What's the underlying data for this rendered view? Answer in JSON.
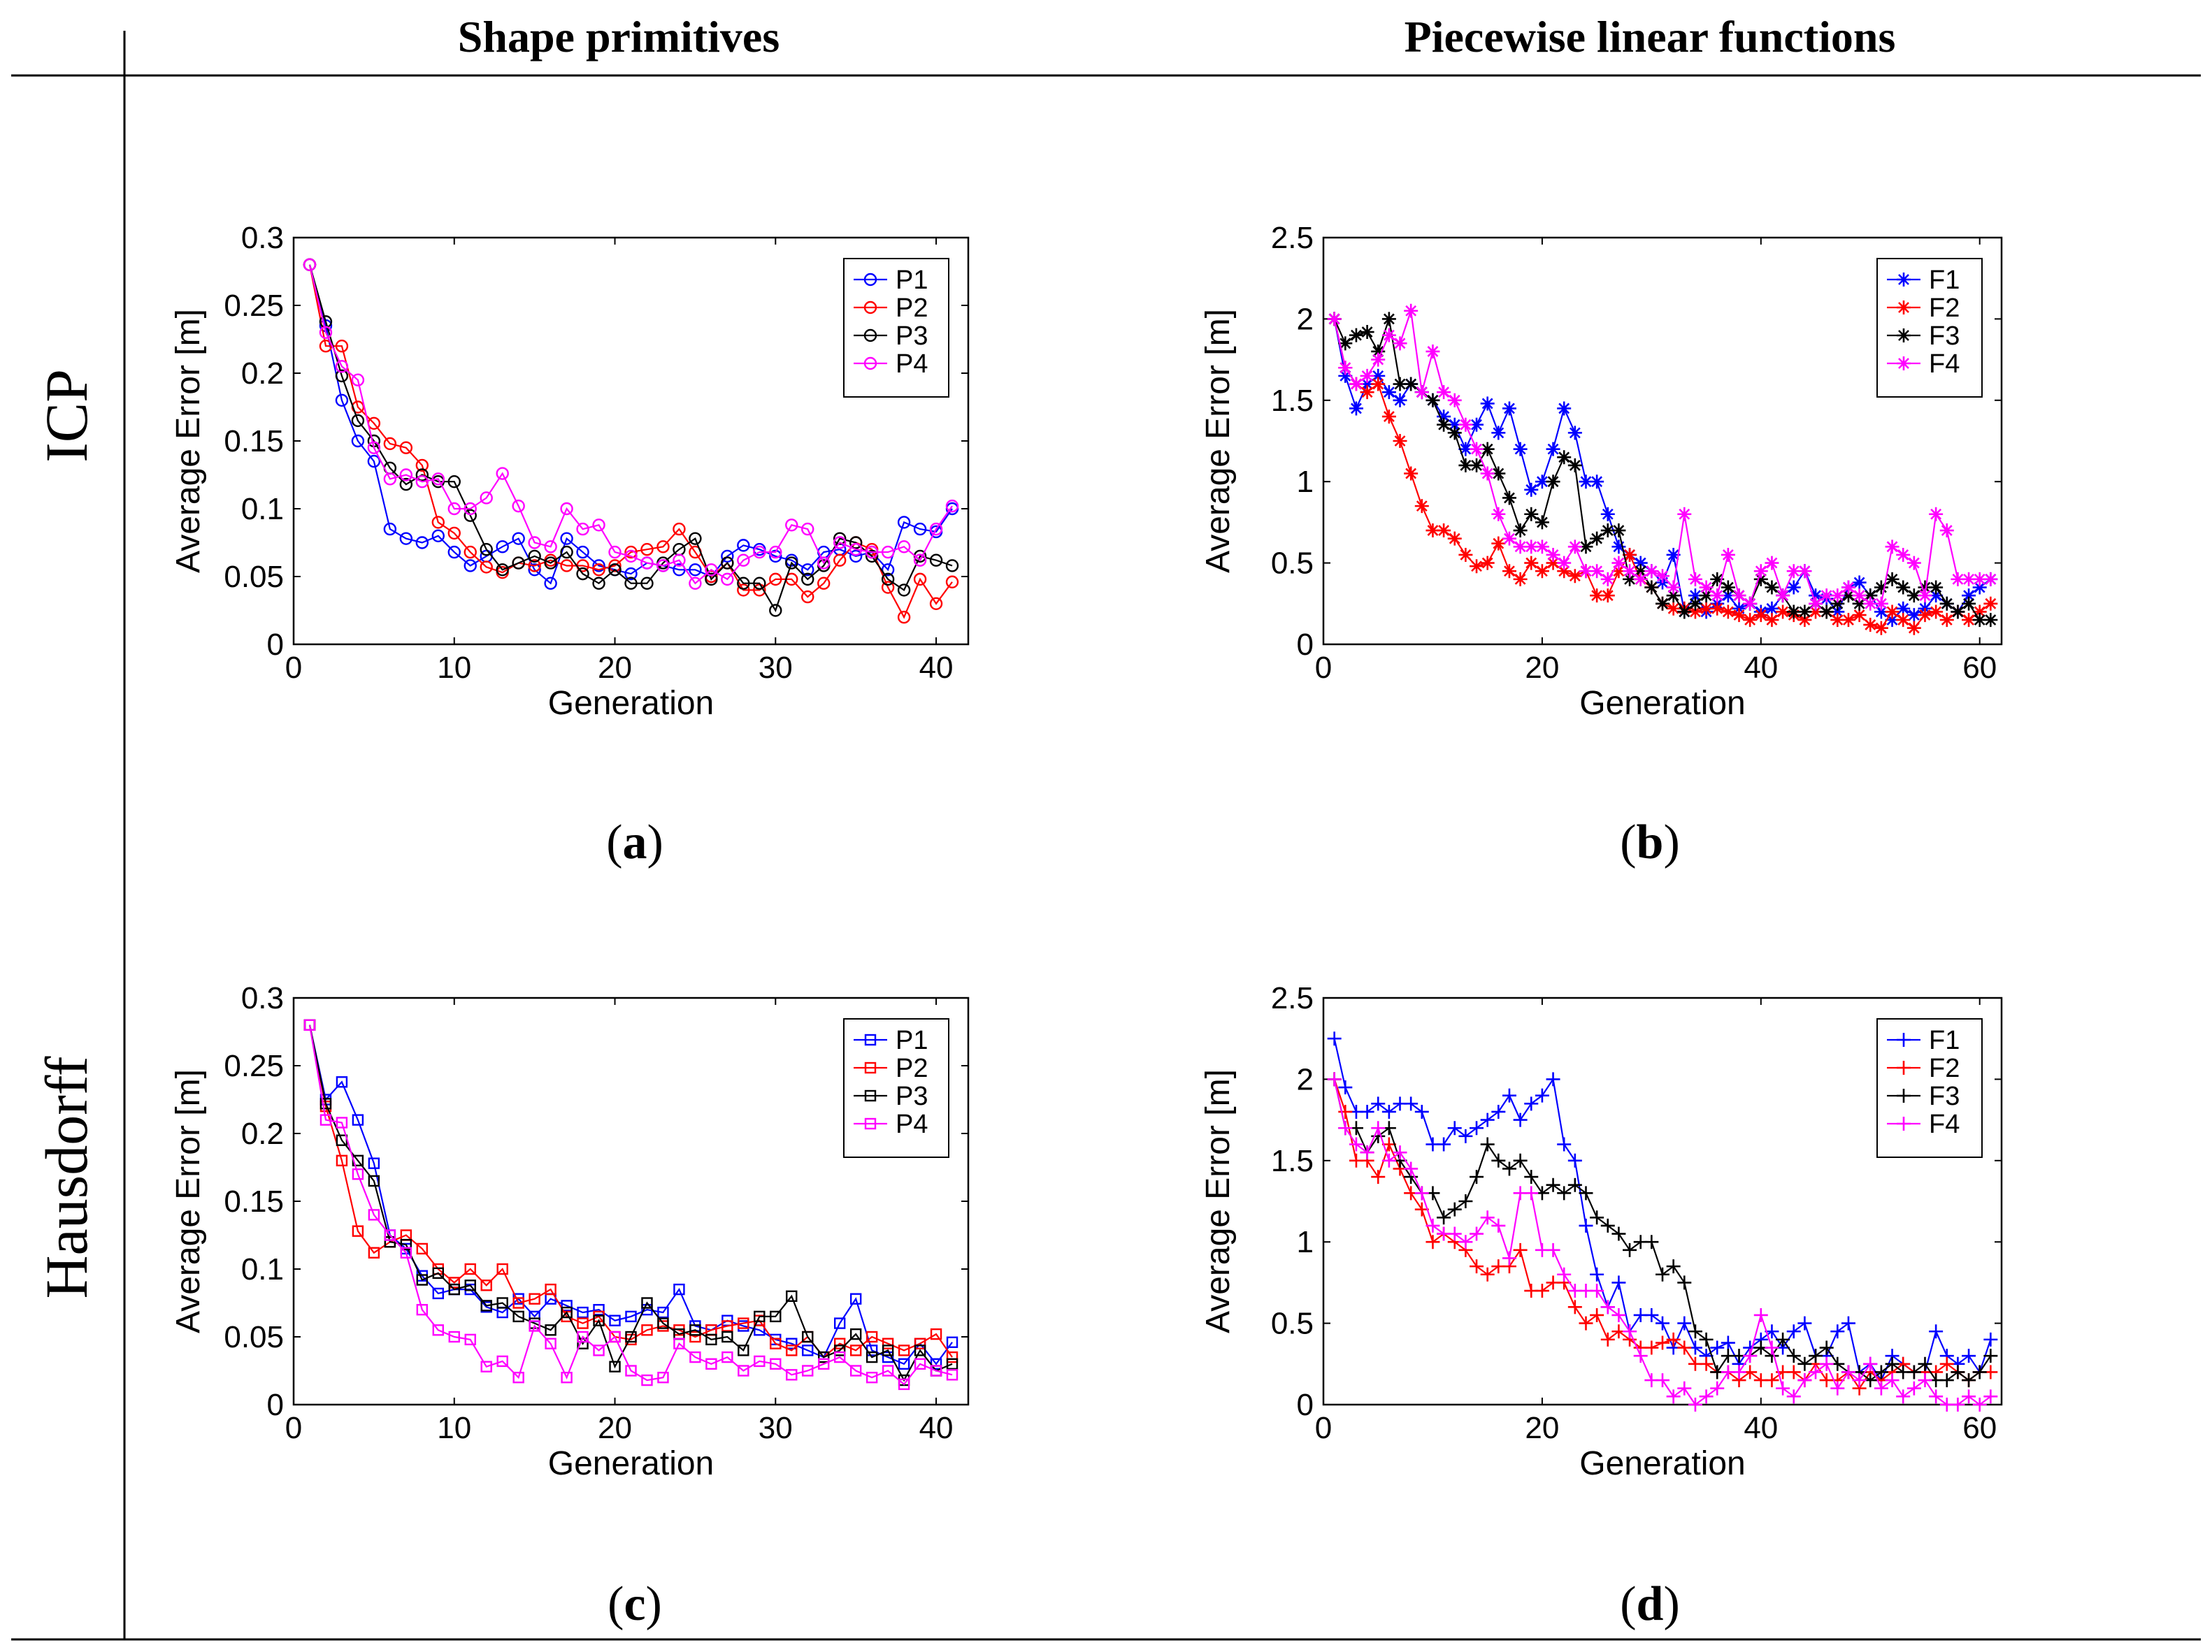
{
  "columns": {
    "left": "Shape primitives",
    "right": "Piecewise linear functions"
  },
  "rows": {
    "top": "ICP",
    "bottom": "Hausdorff"
  },
  "panel_labels": [
    {
      "letter": "a"
    },
    {
      "letter": "b"
    },
    {
      "letter": "c"
    },
    {
      "letter": "d"
    }
  ],
  "chart_data": [
    {
      "id": "a",
      "type": "line",
      "marker": "circle",
      "xlabel": "Generation",
      "ylabel": "Average Error [m]",
      "xlim": [
        0,
        42
      ],
      "ylim": [
        0,
        0.3
      ],
      "xticks": [
        0,
        10,
        20,
        30,
        40
      ],
      "yticks": [
        0,
        0.05,
        0.1,
        0.15,
        0.2,
        0.25,
        0.3
      ],
      "ytick_labels": [
        "0",
        "0.05",
        "0.1",
        "0.15",
        "0.2",
        "0.25",
        "0.3"
      ],
      "grid": false,
      "legend_position": "top-right",
      "x_start": 1,
      "series": [
        {
          "name": "P1",
          "color": "#0000ff",
          "values": [
            0.28,
            0.235,
            0.18,
            0.15,
            0.135,
            0.085,
            0.078,
            0.075,
            0.08,
            0.068,
            0.058,
            0.065,
            0.072,
            0.078,
            0.055,
            0.045,
            0.078,
            0.068,
            0.058,
            0.055,
            0.052,
            0.06,
            0.058,
            0.055,
            0.055,
            0.05,
            0.065,
            0.073,
            0.07,
            0.065,
            0.062,
            0.055,
            0.068,
            0.07,
            0.065,
            0.068,
            0.055,
            0.09,
            0.085,
            0.083,
            0.1
          ]
        },
        {
          "name": "P2",
          "color": "#ff0000",
          "values": [
            0.28,
            0.22,
            0.22,
            0.175,
            0.163,
            0.148,
            0.145,
            0.132,
            0.09,
            0.082,
            0.068,
            0.057,
            0.053,
            0.06,
            0.058,
            0.062,
            0.058,
            0.058,
            0.055,
            0.058,
            0.068,
            0.07,
            0.072,
            0.085,
            0.068,
            0.05,
            0.06,
            0.04,
            0.04,
            0.048,
            0.048,
            0.035,
            0.045,
            0.062,
            0.075,
            0.07,
            0.042,
            0.02,
            0.048,
            0.03,
            0.046
          ]
        },
        {
          "name": "P3",
          "color": "#000000",
          "values": [
            0.28,
            0.238,
            0.198,
            0.165,
            0.15,
            0.13,
            0.118,
            0.125,
            0.12,
            0.12,
            0.095,
            0.07,
            0.055,
            0.06,
            0.065,
            0.06,
            0.068,
            0.052,
            0.045,
            0.055,
            0.045,
            0.045,
            0.06,
            0.07,
            0.078,
            0.048,
            0.06,
            0.045,
            0.045,
            0.025,
            0.06,
            0.048,
            0.058,
            0.078,
            0.075,
            0.065,
            0.048,
            0.04,
            0.065,
            0.062,
            0.058
          ]
        },
        {
          "name": "P4",
          "color": "#ff00ff",
          "values": [
            0.28,
            0.23,
            0.205,
            0.195,
            0.145,
            0.122,
            0.125,
            0.12,
            0.122,
            0.1,
            0.1,
            0.108,
            0.126,
            0.102,
            0.075,
            0.072,
            0.1,
            0.085,
            0.088,
            0.068,
            0.065,
            0.06,
            0.058,
            0.062,
            0.045,
            0.055,
            0.048,
            0.062,
            0.068,
            0.068,
            0.088,
            0.085,
            0.06,
            0.075,
            0.07,
            0.068,
            0.068,
            0.072,
            0.062,
            0.085,
            0.102
          ]
        }
      ]
    },
    {
      "id": "b",
      "type": "line",
      "marker": "asterisk",
      "xlabel": "Generation",
      "ylabel": "Average Error [m]",
      "xlim": [
        0,
        62
      ],
      "ylim": [
        0,
        2.5
      ],
      "xticks": [
        0,
        20,
        40,
        60
      ],
      "yticks": [
        0,
        0.5,
        1,
        1.5,
        2,
        2.5
      ],
      "ytick_labels": [
        "0",
        "0.5",
        "1",
        "1.5",
        "2",
        "2.5"
      ],
      "grid": false,
      "legend_position": "top-right",
      "x_start": 1,
      "series": [
        {
          "name": "F1",
          "color": "#0000ff",
          "values": [
            2.0,
            1.65,
            1.45,
            1.6,
            1.65,
            1.55,
            1.5,
            1.6,
            1.55,
            1.5,
            1.4,
            1.35,
            1.2,
            1.35,
            1.48,
            1.3,
            1.45,
            1.2,
            0.95,
            1.0,
            1.2,
            1.45,
            1.3,
            1.0,
            1.0,
            0.8,
            0.6,
            0.55,
            0.5,
            0.45,
            0.38,
            0.55,
            0.2,
            0.3,
            0.2,
            0.25,
            0.3,
            0.22,
            0.25,
            0.2,
            0.22,
            0.3,
            0.35,
            0.45,
            0.3,
            0.28,
            0.2,
            0.35,
            0.38,
            0.3,
            0.2,
            0.15,
            0.22,
            0.18,
            0.22,
            0.3,
            0.25,
            0.2,
            0.3,
            0.35,
            0.4
          ]
        },
        {
          "name": "F2",
          "color": "#ff0000",
          "values": [
            2.0,
            1.7,
            1.6,
            1.55,
            1.6,
            1.4,
            1.25,
            1.05,
            0.85,
            0.7,
            0.7,
            0.65,
            0.55,
            0.48,
            0.5,
            0.62,
            0.45,
            0.4,
            0.5,
            0.45,
            0.5,
            0.45,
            0.42,
            0.45,
            0.3,
            0.3,
            0.45,
            0.55,
            0.4,
            0.35,
            0.25,
            0.22,
            0.22,
            0.2,
            0.22,
            0.22,
            0.2,
            0.18,
            0.15,
            0.18,
            0.15,
            0.2,
            0.18,
            0.15,
            0.2,
            0.2,
            0.15,
            0.15,
            0.18,
            0.12,
            0.1,
            0.2,
            0.15,
            0.1,
            0.18,
            0.2,
            0.15,
            0.2,
            0.15,
            0.2,
            0.25
          ]
        },
        {
          "name": "F3",
          "color": "#000000",
          "values": [
            2.0,
            1.85,
            1.9,
            1.92,
            1.8,
            2.0,
            1.6,
            1.6,
            1.55,
            1.5,
            1.35,
            1.3,
            1.1,
            1.1,
            1.2,
            1.05,
            0.9,
            0.7,
            0.8,
            0.75,
            1.0,
            1.15,
            1.1,
            0.6,
            0.65,
            0.7,
            0.7,
            0.4,
            0.45,
            0.35,
            0.25,
            0.3,
            0.2,
            0.25,
            0.3,
            0.4,
            0.35,
            0.3,
            0.25,
            0.4,
            0.35,
            0.3,
            0.2,
            0.2,
            0.25,
            0.2,
            0.25,
            0.3,
            0.25,
            0.3,
            0.35,
            0.4,
            0.35,
            0.3,
            0.35,
            0.35,
            0.25,
            0.2,
            0.25,
            0.15,
            0.15
          ]
        },
        {
          "name": "F4",
          "color": "#ff00ff",
          "values": [
            2.0,
            1.7,
            1.6,
            1.65,
            1.75,
            1.9,
            1.85,
            2.05,
            1.55,
            1.8,
            1.55,
            1.5,
            1.35,
            1.2,
            1.05,
            0.8,
            0.65,
            0.6,
            0.6,
            0.6,
            0.55,
            0.5,
            0.6,
            0.45,
            0.45,
            0.4,
            0.5,
            0.45,
            0.4,
            0.45,
            0.42,
            0.35,
            0.8,
            0.4,
            0.35,
            0.3,
            0.55,
            0.3,
            0.25,
            0.45,
            0.5,
            0.3,
            0.45,
            0.45,
            0.25,
            0.3,
            0.3,
            0.35,
            0.3,
            0.25,
            0.25,
            0.6,
            0.55,
            0.5,
            0.3,
            0.8,
            0.7,
            0.4,
            0.4,
            0.4,
            0.4
          ]
        }
      ]
    },
    {
      "id": "c",
      "type": "line",
      "marker": "square",
      "xlabel": "Generation",
      "ylabel": "Average Error [m]",
      "xlim": [
        0,
        42
      ],
      "ylim": [
        0,
        0.3
      ],
      "xticks": [
        0,
        10,
        20,
        30,
        40
      ],
      "yticks": [
        0,
        0.05,
        0.1,
        0.15,
        0.2,
        0.25,
        0.3
      ],
      "ytick_labels": [
        "0",
        "0.05",
        "0.1",
        "0.15",
        "0.2",
        "0.25",
        "0.3"
      ],
      "grid": false,
      "legend_position": "top-right",
      "x_start": 1,
      "series": [
        {
          "name": "P1",
          "color": "#0000ff",
          "values": [
            0.28,
            0.225,
            0.238,
            0.21,
            0.178,
            0.125,
            0.115,
            0.095,
            0.082,
            0.085,
            0.085,
            0.072,
            0.068,
            0.078,
            0.065,
            0.078,
            0.073,
            0.068,
            0.07,
            0.062,
            0.065,
            0.07,
            0.068,
            0.085,
            0.058,
            0.055,
            0.062,
            0.058,
            0.055,
            0.048,
            0.045,
            0.04,
            0.035,
            0.06,
            0.078,
            0.04,
            0.035,
            0.03,
            0.045,
            0.03,
            0.046
          ]
        },
        {
          "name": "P2",
          "color": "#ff0000",
          "values": [
            0.28,
            0.22,
            0.18,
            0.128,
            0.112,
            0.12,
            0.125,
            0.115,
            0.1,
            0.09,
            0.1,
            0.088,
            0.1,
            0.075,
            0.078,
            0.085,
            0.065,
            0.06,
            0.065,
            0.05,
            0.048,
            0.055,
            0.058,
            0.055,
            0.05,
            0.055,
            0.058,
            0.06,
            0.062,
            0.045,
            0.04,
            0.05,
            0.035,
            0.045,
            0.04,
            0.05,
            0.045,
            0.04,
            0.045,
            0.052,
            0.035
          ]
        },
        {
          "name": "P3",
          "color": "#000000",
          "values": [
            0.28,
            0.222,
            0.195,
            0.18,
            0.165,
            0.12,
            0.118,
            0.092,
            0.097,
            0.085,
            0.088,
            0.073,
            0.075,
            0.065,
            0.06,
            0.055,
            0.068,
            0.045,
            0.062,
            0.028,
            0.05,
            0.075,
            0.06,
            0.052,
            0.055,
            0.048,
            0.05,
            0.04,
            0.065,
            0.065,
            0.08,
            0.05,
            0.035,
            0.04,
            0.052,
            0.035,
            0.04,
            0.018,
            0.04,
            0.025,
            0.03
          ]
        },
        {
          "name": "P4",
          "color": "#ff00ff",
          "values": [
            0.28,
            0.21,
            0.208,
            0.17,
            0.14,
            0.125,
            0.112,
            0.07,
            0.055,
            0.05,
            0.048,
            0.028,
            0.032,
            0.02,
            0.058,
            0.045,
            0.02,
            0.05,
            0.04,
            0.05,
            0.025,
            0.018,
            0.02,
            0.045,
            0.035,
            0.03,
            0.035,
            0.025,
            0.032,
            0.03,
            0.022,
            0.025,
            0.03,
            0.035,
            0.025,
            0.02,
            0.025,
            0.015,
            0.03,
            0.025,
            0.022
          ]
        }
      ]
    },
    {
      "id": "d",
      "type": "line",
      "marker": "plus",
      "xlabel": "Generation",
      "ylabel": "Average Error [m]",
      "xlim": [
        0,
        62
      ],
      "ylim": [
        0,
        2.5
      ],
      "xticks": [
        0,
        20,
        40,
        60
      ],
      "yticks": [
        0,
        0.5,
        1,
        1.5,
        2,
        2.5
      ],
      "ytick_labels": [
        "0",
        "0.5",
        "1",
        "1.5",
        "2",
        "2.5"
      ],
      "grid": false,
      "legend_position": "top-right",
      "x_start": 1,
      "series": [
        {
          "name": "F1",
          "color": "#0000ff",
          "values": [
            2.25,
            1.95,
            1.8,
            1.8,
            1.85,
            1.8,
            1.85,
            1.85,
            1.8,
            1.6,
            1.6,
            1.7,
            1.65,
            1.7,
            1.75,
            1.8,
            1.9,
            1.75,
            1.85,
            1.9,
            2.0,
            1.6,
            1.5,
            1.1,
            0.8,
            0.6,
            0.75,
            0.45,
            0.55,
            0.55,
            0.5,
            0.35,
            0.5,
            0.35,
            0.3,
            0.35,
            0.38,
            0.25,
            0.35,
            0.4,
            0.45,
            0.35,
            0.45,
            0.5,
            0.3,
            0.3,
            0.45,
            0.5,
            0.2,
            0.25,
            0.15,
            0.3,
            0.25,
            0.2,
            0.2,
            0.45,
            0.3,
            0.25,
            0.3,
            0.2,
            0.4
          ]
        },
        {
          "name": "F2",
          "color": "#ff0000",
          "values": [
            2.0,
            1.8,
            1.5,
            1.5,
            1.4,
            1.6,
            1.45,
            1.3,
            1.2,
            1.0,
            1.05,
            1.0,
            0.95,
            0.85,
            0.8,
            0.85,
            0.85,
            0.95,
            0.7,
            0.7,
            0.75,
            0.75,
            0.6,
            0.5,
            0.55,
            0.4,
            0.45,
            0.4,
            0.35,
            0.35,
            0.38,
            0.4,
            0.35,
            0.25,
            0.25,
            0.2,
            0.2,
            0.15,
            0.2,
            0.15,
            0.15,
            0.2,
            0.2,
            0.15,
            0.25,
            0.15,
            0.15,
            0.2,
            0.1,
            0.2,
            0.15,
            0.2,
            0.25,
            0.2,
            0.2,
            0.2,
            0.25,
            0.2,
            0.15,
            0.2,
            0.2
          ]
        },
        {
          "name": "F3",
          "color": "#000000",
          "values": [
            2.0,
            1.7,
            1.7,
            1.55,
            1.65,
            1.7,
            1.5,
            1.4,
            1.3,
            1.3,
            1.15,
            1.2,
            1.25,
            1.4,
            1.6,
            1.5,
            1.45,
            1.5,
            1.4,
            1.3,
            1.35,
            1.3,
            1.35,
            1.3,
            1.15,
            1.1,
            1.05,
            0.95,
            1.0,
            1.0,
            0.8,
            0.85,
            0.75,
            0.45,
            0.4,
            0.2,
            0.3,
            0.3,
            0.3,
            0.35,
            0.3,
            0.4,
            0.3,
            0.25,
            0.3,
            0.35,
            0.25,
            0.2,
            0.2,
            0.15,
            0.2,
            0.25,
            0.2,
            0.2,
            0.25,
            0.15,
            0.15,
            0.2,
            0.15,
            0.2,
            0.3
          ]
        },
        {
          "name": "F4",
          "color": "#ff00ff",
          "values": [
            2.0,
            1.7,
            1.6,
            1.55,
            1.7,
            1.5,
            1.55,
            1.45,
            1.3,
            1.1,
            1.05,
            1.05,
            1.0,
            1.05,
            1.15,
            1.1,
            0.9,
            1.3,
            1.3,
            0.95,
            0.95,
            0.8,
            0.7,
            0.7,
            0.7,
            0.6,
            0.55,
            0.45,
            0.3,
            0.15,
            0.15,
            0.05,
            0.1,
            0.0,
            0.05,
            0.1,
            0.2,
            0.2,
            0.3,
            0.55,
            0.35,
            0.1,
            0.05,
            0.15,
            0.2,
            0.25,
            0.1,
            0.2,
            0.15,
            0.25,
            0.1,
            0.15,
            0.05,
            0.1,
            0.15,
            0.05,
            0.0,
            0.0,
            0.05,
            0.0,
            0.05
          ]
        }
      ]
    }
  ]
}
